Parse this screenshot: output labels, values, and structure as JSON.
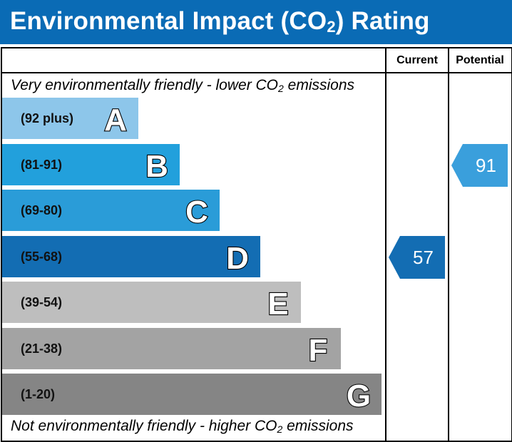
{
  "header": {
    "title_prefix": "Environmental Impact (CO",
    "title_sub": "2",
    "title_suffix": ") Rating",
    "background": "#0a6bb5"
  },
  "columns": {
    "current": "Current",
    "potential": "Potential"
  },
  "captions": {
    "top_prefix": "Very environmentally friendly - lower CO",
    "top_sub": "2",
    "top_suffix": " emissions",
    "bottom_prefix": "Not environmentally friendly - higher CO",
    "bottom_sub": "2",
    "bottom_suffix": " emissions"
  },
  "chart_data": {
    "type": "bar",
    "title": "Environmental Impact (CO2) Rating",
    "bands": [
      {
        "letter": "A",
        "range": "(92 plus)",
        "min": 92,
        "max": 100,
        "color": "#8dc6ea"
      },
      {
        "letter": "B",
        "range": "(81-91)",
        "min": 81,
        "max": 91,
        "color": "#22a0dc"
      },
      {
        "letter": "C",
        "range": "(69-80)",
        "min": 69,
        "max": 80,
        "color": "#2a9cd8"
      },
      {
        "letter": "D",
        "range": "(55-68)",
        "min": 55,
        "max": 68,
        "color": "#136db3"
      },
      {
        "letter": "E",
        "range": "(39-54)",
        "min": 39,
        "max": 54,
        "color": "#bebebe"
      },
      {
        "letter": "F",
        "range": "(21-38)",
        "min": 21,
        "max": 38,
        "color": "#a3a3a3"
      },
      {
        "letter": "G",
        "range": "(1-20)",
        "min": 1,
        "max": 20,
        "color": "#858585"
      }
    ],
    "current": {
      "label": "Current",
      "value": "57",
      "band": "D",
      "color": "#136db3"
    },
    "potential": {
      "label": "Potential",
      "value": "91",
      "band": "B",
      "color": "#3a9fdc"
    }
  }
}
